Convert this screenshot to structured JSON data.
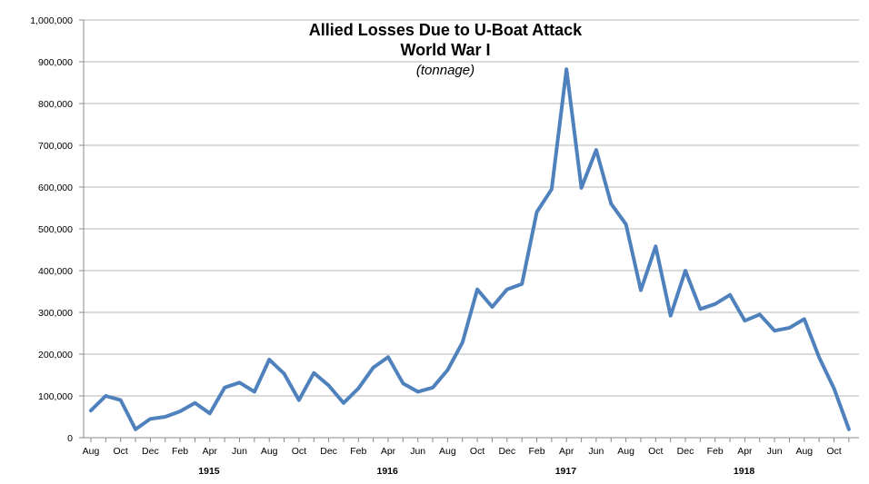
{
  "chart_data": {
    "type": "line",
    "title_line1": "Allied Losses Due to U-Boat Attack",
    "title_line2": "World War I",
    "subtitle": "(tonnage)",
    "ylim": [
      0,
      1000000
    ],
    "y_ticks": [
      "0",
      "100,000",
      "200,000",
      "300,000",
      "400,000",
      "500,000",
      "600,000",
      "700,000",
      "800,000",
      "900,000",
      "1,000,000"
    ],
    "x_tick_labels": [
      "Aug",
      "Oct",
      "Dec",
      "Feb",
      "Apr",
      "Jun",
      "Aug",
      "Oct",
      "Dec",
      "Feb",
      "Apr",
      "Jun",
      "Aug",
      "Oct",
      "Dec",
      "Feb",
      "Apr",
      "Jun",
      "Aug",
      "Oct",
      "Dec",
      "Feb",
      "Apr",
      "Jun",
      "Aug",
      "Oct"
    ],
    "year_labels": [
      "1915",
      "1916",
      "1917",
      "1918"
    ],
    "line_color": "#4f81bd",
    "grid": true,
    "series": [
      {
        "values": [
          65000,
          100000,
          90000,
          20000,
          45000,
          50000,
          63000,
          83000,
          58000,
          120000,
          132000,
          110000,
          187000,
          153000,
          90000,
          155000,
          125000,
          83000,
          118000,
          168000,
          193000,
          130000,
          110000,
          120000,
          162000,
          228000,
          355000,
          313000,
          355000,
          368000,
          540000,
          595000,
          882000,
          598000,
          689000,
          560000,
          511000,
          353000,
          458000,
          292000,
          400000,
          308000,
          320000,
          342000,
          280000,
          295000,
          256000,
          263000,
          284000,
          192000,
          118000,
          20000
        ]
      }
    ]
  }
}
